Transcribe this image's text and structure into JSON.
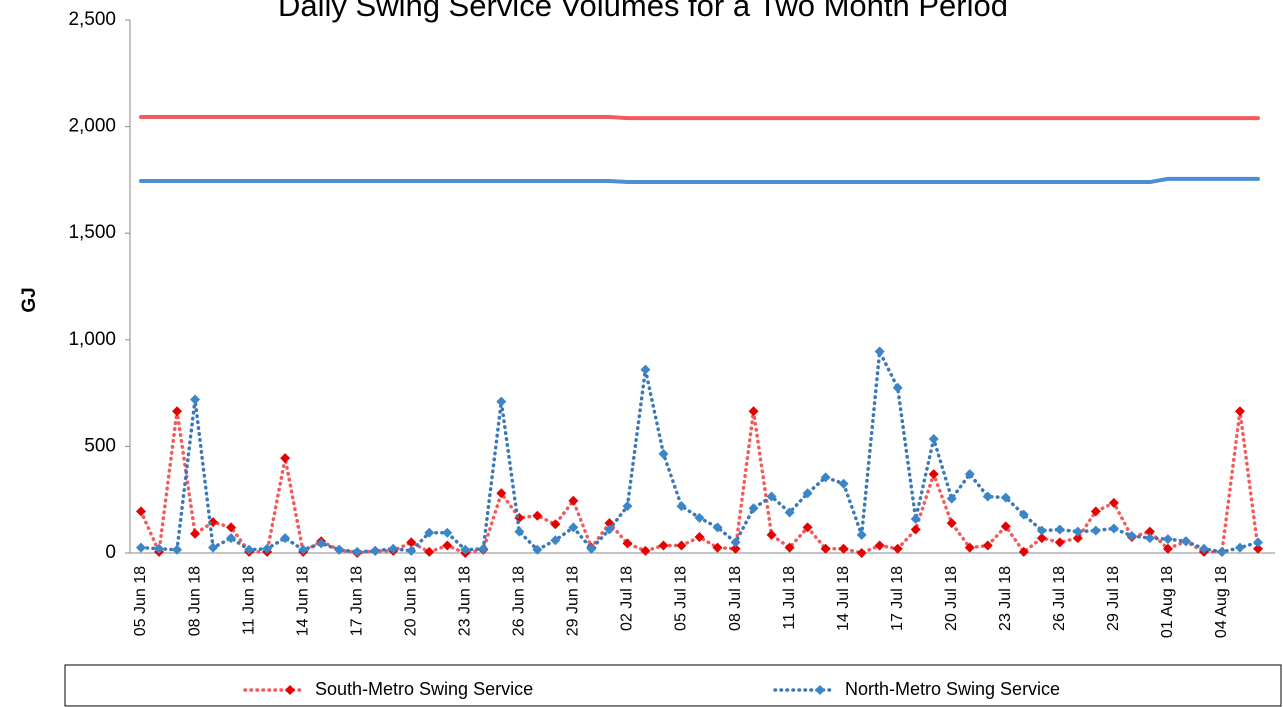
{
  "chart_data": {
    "type": "line",
    "title": "Daily Swing Service Volumes for a Two Month Period",
    "y_label": "GJ",
    "categories": [
      "05 Jun 18",
      null,
      null,
      "08 Jun 18",
      null,
      null,
      "11 Jun 18",
      null,
      null,
      "14 Jun 18",
      null,
      null,
      "17 Jun 18",
      null,
      null,
      "20 Jun 18",
      null,
      null,
      "23 Jun 18",
      null,
      null,
      "26 Jun 18",
      null,
      null,
      "29 Jun 18",
      null,
      null,
      "02 Jul 18",
      null,
      null,
      "05 Jul 18",
      null,
      null,
      "08 Jul 18",
      null,
      null,
      "11 Jul 18",
      null,
      null,
      "14 Jul 18",
      null,
      null,
      "17 Jul 18",
      null,
      null,
      "20 Jul 18",
      null,
      null,
      "23 Jul 18",
      null,
      null,
      "26 Jul 18",
      null,
      null,
      "29 Jul 18",
      null,
      null,
      "01 Aug 18",
      null,
      null,
      "04 Aug 18",
      null,
      null
    ],
    "ylim": [
      0,
      2500
    ],
    "yticks": [
      0,
      500,
      {
        "value": 1000,
        "label": "1,000"
      },
      {
        "value": 1500,
        "label": "1,500"
      },
      {
        "value": 2000,
        "label": "2,000"
      },
      {
        "value": 2500,
        "label": "2,500"
      }
    ],
    "legend": "bottom",
    "series": [
      {
        "color": "#f55a5a",
        "style": "solid",
        "values": [
          2045,
          2045,
          2045,
          2045,
          2045,
          2045,
          2045,
          2045,
          2045,
          2045,
          2045,
          2045,
          2045,
          2045,
          2045,
          2045,
          2045,
          2045,
          2045,
          2045,
          2045,
          2045,
          2045,
          2045,
          2045,
          2045,
          2045,
          2040,
          2040,
          2040,
          2040,
          2040,
          2040,
          2040,
          2040,
          2040,
          2040,
          2040,
          2040,
          2040,
          2040,
          2040,
          2040,
          2040,
          2040,
          2040,
          2040,
          2040,
          2040,
          2040,
          2040,
          2040,
          2040,
          2040,
          2040,
          2040,
          2040,
          2040,
          2040,
          2040,
          2040,
          2040,
          2040
        ]
      },
      {
        "color": "#4a90d0",
        "style": "solid",
        "values": [
          1745,
          1745,
          1745,
          1745,
          1745,
          1745,
          1745,
          1745,
          1745,
          1745,
          1745,
          1745,
          1745,
          1745,
          1745,
          1745,
          1745,
          1745,
          1745,
          1745,
          1745,
          1745,
          1745,
          1745,
          1745,
          1745,
          1745,
          1740,
          1740,
          1740,
          1740,
          1740,
          1740,
          1740,
          1740,
          1740,
          1740,
          1740,
          1740,
          1740,
          1740,
          1740,
          1740,
          1740,
          1740,
          1740,
          1740,
          1740,
          1740,
          1740,
          1740,
          1740,
          1740,
          1740,
          1740,
          1740,
          1740,
          1755,
          1755,
          1755,
          1755,
          1755,
          1755
        ]
      },
      {
        "name": "South-Metro Swing Service",
        "color": "#e60000",
        "line_color": "#f55a5a",
        "style": "dotted",
        "values": [
          195,
          5,
          665,
          90,
          145,
          120,
          5,
          5,
          445,
          5,
          55,
          15,
          0,
          10,
          10,
          50,
          5,
          35,
          0,
          15,
          280,
          165,
          175,
          135,
          245,
          25,
          140,
          45,
          10,
          35,
          35,
          75,
          25,
          20,
          665,
          85,
          25,
          120,
          20,
          20,
          0,
          35,
          20,
          110,
          370,
          140,
          25,
          35,
          125,
          5,
          70,
          50,
          70,
          195,
          235,
          75,
          100,
          20,
          55,
          5,
          5,
          665,
          20
        ]
      },
      {
        "name": "North-Metro Swing Service",
        "color": "#3a86c8",
        "line_color": "#3a78b8",
        "style": "dotted",
        "values": [
          25,
          20,
          15,
          720,
          25,
          70,
          15,
          20,
          70,
          15,
          45,
          15,
          5,
          10,
          20,
          10,
          95,
          95,
          15,
          20,
          710,
          100,
          15,
          60,
          120,
          20,
          110,
          220,
          860,
          465,
          220,
          165,
          120,
          50,
          210,
          265,
          190,
          280,
          355,
          325,
          85,
          945,
          775,
          160,
          535,
          255,
          370,
          265,
          260,
          180,
          105,
          110,
          100,
          105,
          115,
          80,
          70,
          65,
          55,
          20,
          5,
          25,
          50
        ]
      }
    ]
  }
}
